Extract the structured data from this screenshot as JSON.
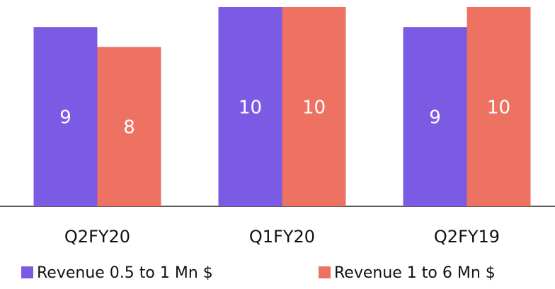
{
  "chart_data": {
    "type": "bar",
    "categories": [
      "Q2FY20",
      "Q1FY20",
      "Q2FY19"
    ],
    "series": [
      {
        "name": "Revenue 0.5 to 1 Mn $",
        "color": "#7b5be3",
        "values": [
          9,
          10,
          9
        ]
      },
      {
        "name": "Revenue 1 to 6 Mn $",
        "color": "#ee7262",
        "values": [
          8,
          10,
          10
        ]
      }
    ],
    "ylim": [
      0,
      10
    ]
  }
}
